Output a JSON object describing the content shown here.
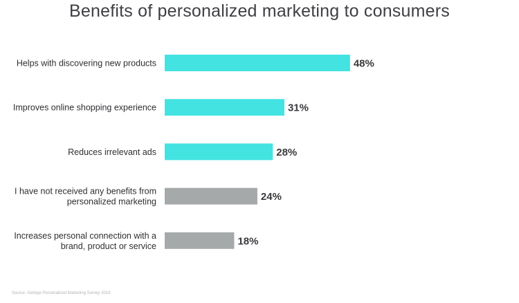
{
  "chart_data": {
    "type": "bar",
    "orientation": "horizontal",
    "title": "Benefits of personalized marketing to consumers",
    "source": "Source: GetApp Personalized Marketing Survey 2019",
    "value_suffix": "%",
    "categories": [
      [
        "Helps with discovering new products"
      ],
      [
        "Improves online shopping experience"
      ],
      [
        "Reduces irrelevant ads"
      ],
      [
        "I have not received any benefits from",
        "personalized marketing"
      ],
      [
        "Increases personal connection with a",
        "brand, product or service"
      ]
    ],
    "values": [
      48,
      31,
      28,
      24,
      18
    ],
    "bar_colors": [
      "#42e3e1",
      "#42e3e1",
      "#42e3e1",
      "#a6a9aa",
      "#a6a9aa"
    ],
    "grid": false,
    "legend": "none"
  }
}
